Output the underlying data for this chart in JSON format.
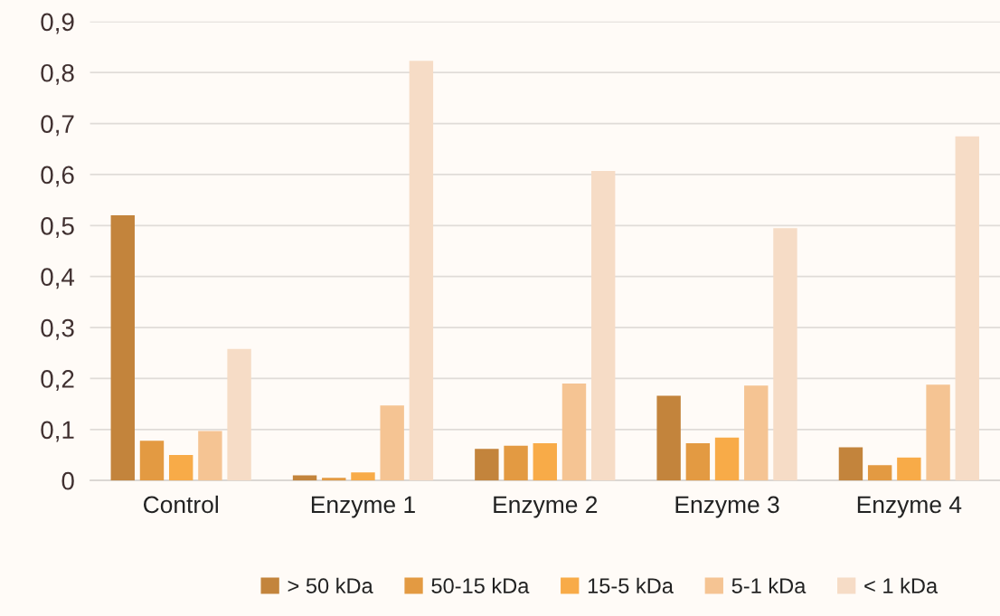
{
  "chart_data": {
    "type": "bar",
    "categories": [
      "Control",
      "Enzyme 1",
      "Enzyme 2",
      "Enzyme 3",
      "Enzyme 4"
    ],
    "series": [
      {
        "name": "> 50 kDa",
        "color": "#c3843c",
        "values": [
          0.52,
          0.01,
          0.062,
          0.166,
          0.065
        ]
      },
      {
        "name": "50-15 kDa",
        "color": "#e39a42",
        "values": [
          0.078,
          0.005,
          0.068,
          0.073,
          0.03
        ]
      },
      {
        "name": "15-5 kDa",
        "color": "#f8ab48",
        "values": [
          0.05,
          0.016,
          0.073,
          0.084,
          0.045
        ]
      },
      {
        "name": "5-1 kDa",
        "color": "#f5c493",
        "values": [
          0.097,
          0.147,
          0.19,
          0.186,
          0.188
        ]
      },
      {
        "name": "< 1 kDa",
        "color": "#f6dcc6",
        "values": [
          0.258,
          0.823,
          0.607,
          0.495,
          0.675
        ]
      }
    ],
    "ylim": [
      0,
      0.9
    ],
    "yticks": [
      {
        "value": 0,
        "label": "0"
      },
      {
        "value": 0.1,
        "label": "0,1"
      },
      {
        "value": 0.2,
        "label": "0,2"
      },
      {
        "value": 0.3,
        "label": "0,3"
      },
      {
        "value": 0.4,
        "label": "0,4"
      },
      {
        "value": 0.5,
        "label": "0,5"
      },
      {
        "value": 0.6,
        "label": "0,6"
      },
      {
        "value": 0.7,
        "label": "0,7"
      },
      {
        "value": 0.8,
        "label": "0,8"
      },
      {
        "value": 0.9,
        "label": "0,9"
      }
    ],
    "grid": "y",
    "legend": "bottom"
  }
}
